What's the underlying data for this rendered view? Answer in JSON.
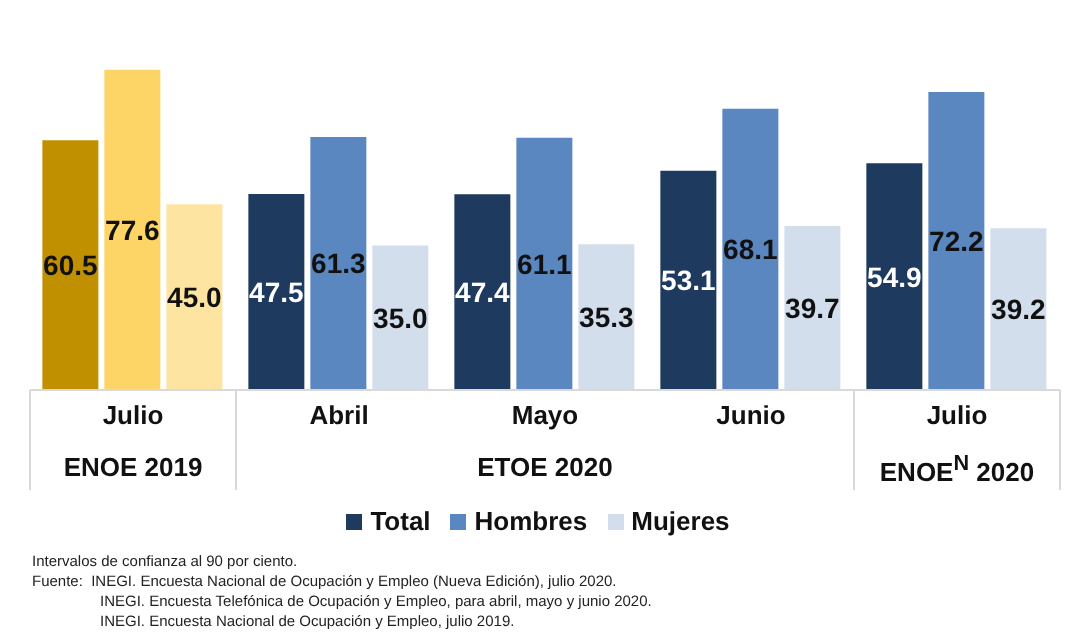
{
  "chart_data": {
    "type": "bar",
    "categories": [
      "Julio",
      "Abril",
      "Mayo",
      "Junio",
      "Julio"
    ],
    "series": [
      {
        "name": "Total",
        "color": "#1f3a5f",
        "colors": [
          "#c09000",
          "#1f3a5f",
          "#1f3a5f",
          "#1f3a5f",
          "#1f3a5f"
        ],
        "values": [
          60.5,
          47.5,
          47.4,
          53.1,
          54.9
        ]
      },
      {
        "name": "Hombres",
        "color": "#5b87c0",
        "colors": [
          "#fdd466",
          "#5b87c0",
          "#5b87c0",
          "#5b87c0",
          "#5b87c0"
        ],
        "values": [
          77.6,
          61.3,
          61.1,
          68.1,
          72.2
        ]
      },
      {
        "name": "Mujeres",
        "color": "#d3deed",
        "colors": [
          "#fde4a0",
          "#d3deed",
          "#d3deed",
          "#d3deed",
          "#d3deed"
        ],
        "values": [
          45.0,
          35.0,
          35.3,
          39.7,
          39.2
        ],
        "value_labels": [
          "45.0",
          "35.0",
          "35.3",
          "39.7",
          "39.2"
        ]
      }
    ],
    "data_labels": true,
    "legend": "bottom",
    "grid": false,
    "annotations": [
      "ENOE 2019",
      "ETOE 2020",
      "ENOE$^{N}$ 2020",
      "Intervalos de confianza al 90 por ciento.",
      "Fuente:  INEGI. Encuesta Nacional de Ocupación y Empleo (Nueva Edición), julio 2020.",
      "INEGI. Encuesta Telefónica de Ocupación y Empleo, para abril, mayo y junio 2020.",
      "INEGI. Encuesta Nacional de Ocupación y Empleo, julio 2019."
    ]
  }
}
